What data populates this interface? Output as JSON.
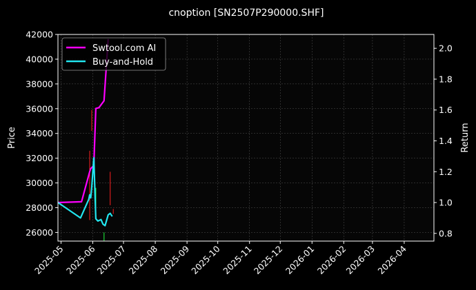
{
  "chart_data": {
    "type": "line",
    "title": "cnoption [SN2507P290000.SHF]",
    "ylabel_left": "Price",
    "ylabel_right": "Return",
    "ylim_left": [
      25300,
      42000
    ],
    "ylim_right": [
      0.75,
      2.09
    ],
    "xlim": [
      "2025-04-28",
      "2026-04-30"
    ],
    "left_ticks": [
      26000,
      28000,
      30000,
      32000,
      34000,
      36000,
      38000,
      40000,
      42000
    ],
    "right_ticks": [
      "0.8",
      "1.0",
      "1.2",
      "1.4",
      "1.6",
      "1.8",
      "2.0"
    ],
    "x_ticks": [
      {
        "date": "2025-05-01",
        "label": "2025-05"
      },
      {
        "date": "2025-06-01",
        "label": "2025-06"
      },
      {
        "date": "2025-07-01",
        "label": "2025-07"
      },
      {
        "date": "2025-08-01",
        "label": "2025-08"
      },
      {
        "date": "2025-09-01",
        "label": "2025-09"
      },
      {
        "date": "2025-10-01",
        "label": "2025-10"
      },
      {
        "date": "2025-11-01",
        "label": "2025-11"
      },
      {
        "date": "2025-12-01",
        "label": "2025-12"
      },
      {
        "date": "2026-01-01",
        "label": "2026-01"
      },
      {
        "date": "2026-02-01",
        "label": "2026-02"
      },
      {
        "date": "2026-03-01",
        "label": "2026-03"
      },
      {
        "date": "2026-04-01",
        "label": "2026-04"
      }
    ],
    "grid": true,
    "legend": "top-left",
    "series": [
      {
        "name": "Swtool.com AI",
        "color": "#ff00ff",
        "axis": "right",
        "points": [
          [
            "2025-04-28",
            1.0
          ],
          [
            "2025-05-21",
            1.005
          ],
          [
            "2025-05-29",
            1.2
          ],
          [
            "2025-05-30",
            1.22
          ],
          [
            "2025-06-02",
            1.24
          ],
          [
            "2025-06-04",
            1.61
          ],
          [
            "2025-06-07",
            1.615
          ],
          [
            "2025-06-12",
            1.66
          ],
          [
            "2025-06-16",
            2.06
          ]
        ]
      },
      {
        "name": "Buy-and-Hold",
        "color": "#22e6f0",
        "axis": "right",
        "points": [
          [
            "2025-04-28",
            1.0
          ],
          [
            "2025-05-20",
            0.9
          ],
          [
            "2025-05-28",
            1.02
          ],
          [
            "2025-05-29",
            1.05
          ],
          [
            "2025-05-30",
            1.03
          ],
          [
            "2025-05-31",
            1.1
          ],
          [
            "2025-06-02",
            1.29
          ],
          [
            "2025-06-04",
            0.895
          ],
          [
            "2025-06-06",
            0.88
          ],
          [
            "2025-06-09",
            0.89
          ],
          [
            "2025-06-11",
            0.86
          ],
          [
            "2025-06-13",
            0.85
          ],
          [
            "2025-06-16",
            0.92
          ],
          [
            "2025-06-18",
            0.93
          ],
          [
            "2025-06-20",
            0.91
          ]
        ]
      }
    ],
    "candles": [
      {
        "date": "2025-05-29",
        "low": 27000,
        "high": 32600,
        "color": "#ff2020"
      },
      {
        "date": "2025-05-31",
        "low": 34200,
        "high": 35900,
        "color": "#ff2020"
      },
      {
        "date": "2025-06-04",
        "low": 28000,
        "high": 29600,
        "color": "#20ff40"
      },
      {
        "date": "2025-06-12",
        "low": 25300,
        "high": 26000,
        "color": "#20ff40"
      },
      {
        "date": "2025-06-18",
        "low": 28200,
        "high": 30900,
        "color": "#ff2020"
      },
      {
        "date": "2025-06-21",
        "low": 27500,
        "high": 27900,
        "color": "#ff2020"
      }
    ]
  }
}
